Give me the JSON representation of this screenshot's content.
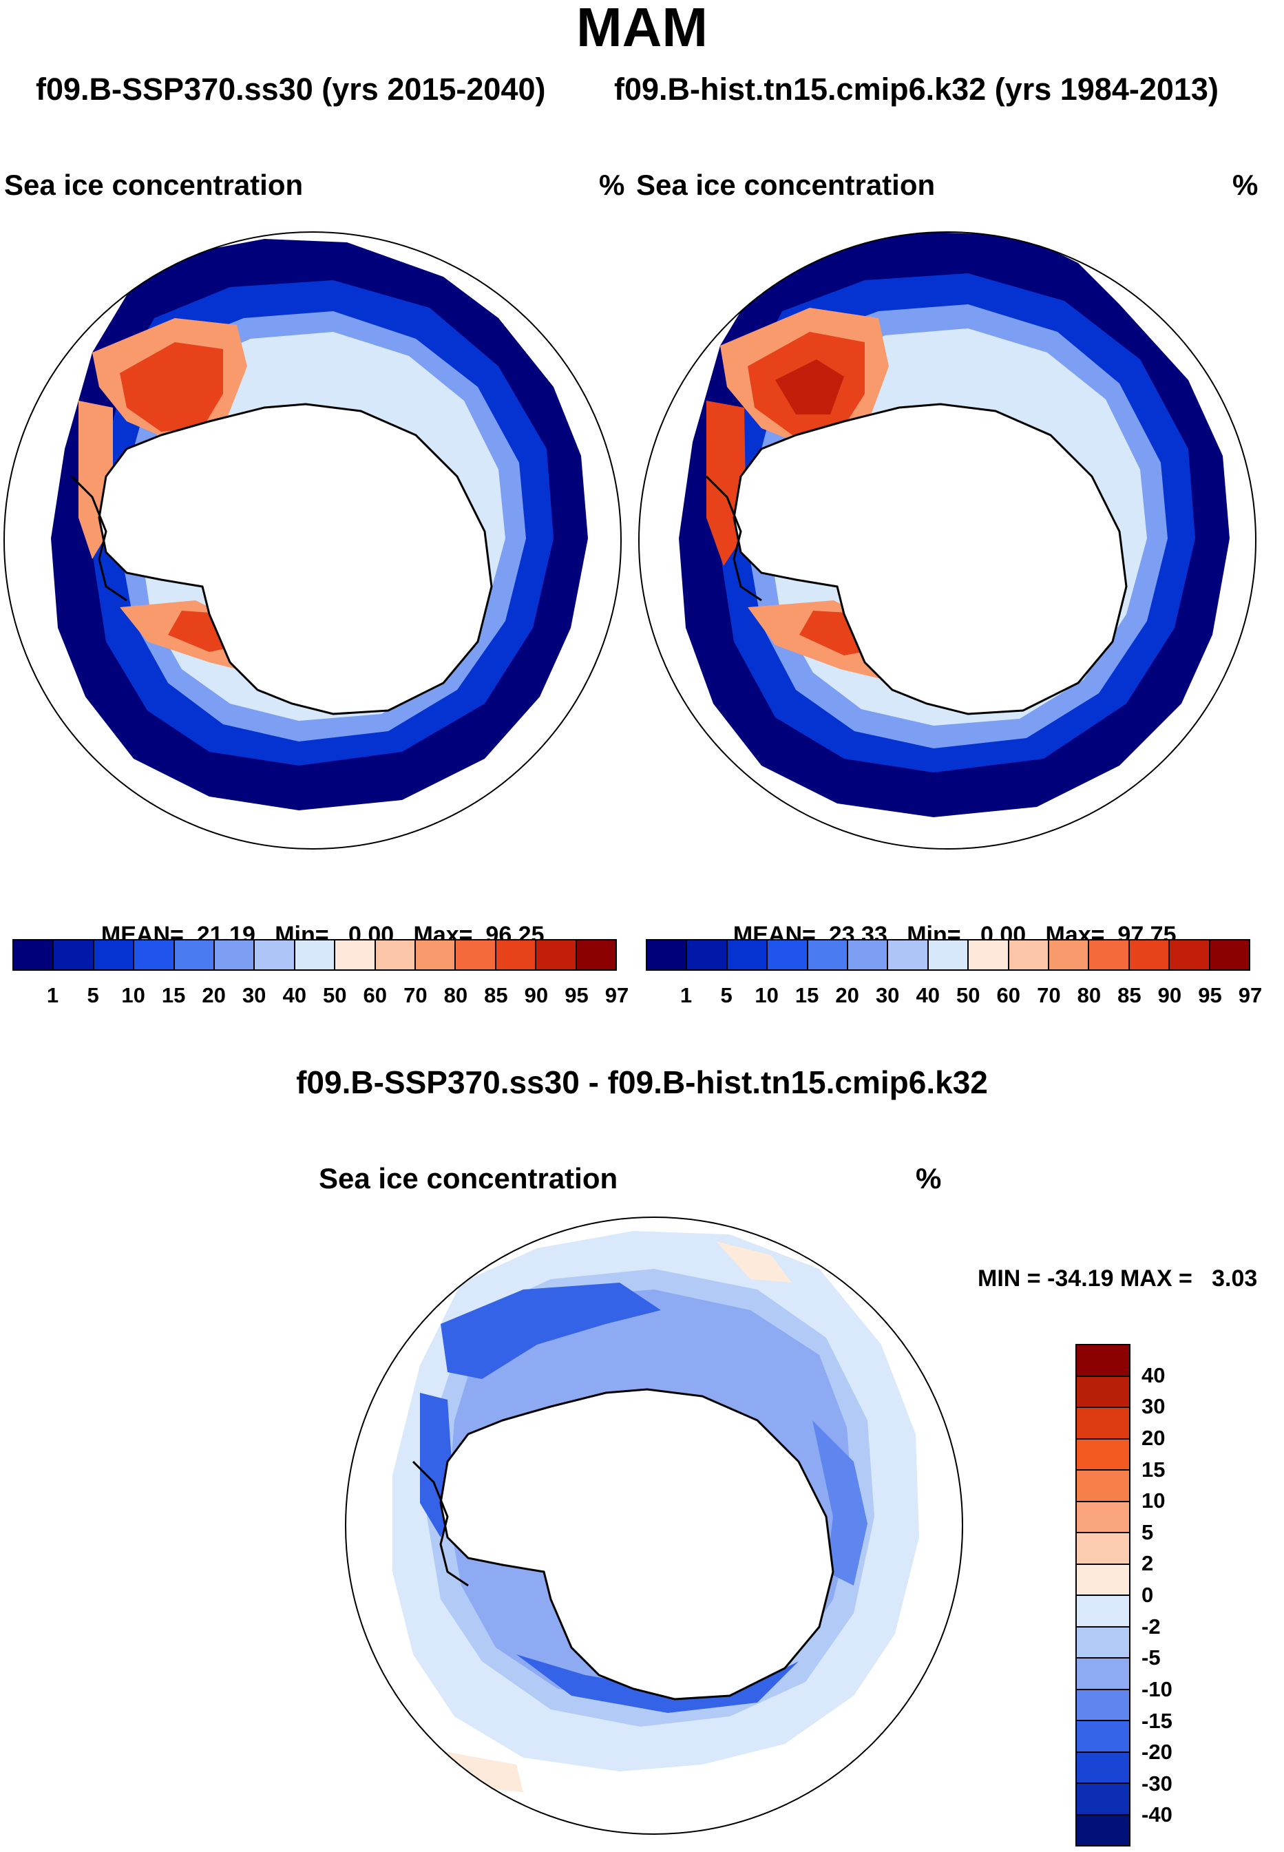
{
  "season": "MAM",
  "subtitle_left": "f09.B-SSP370.ss30 (yrs 2015-2040)",
  "subtitle_right": "f09.B-hist.tn15.cmip6.k32 (yrs 1984-2013)",
  "panels": [
    {
      "variable": "Sea ice concentration",
      "units": "%",
      "stats": {
        "mean_label": "MEAN=",
        "mean": "21.19",
        "min_label": "Min=",
        "min": "0.00",
        "max_label": "Max=",
        "max": "96.25"
      }
    },
    {
      "variable": "Sea ice concentration",
      "units": "%",
      "stats": {
        "mean_label": "MEAN=",
        "mean": "23.33",
        "min_label": "Min=",
        "min": "0.00",
        "max_label": "Max=",
        "max": "97.75"
      }
    }
  ],
  "colorbar_main": {
    "labels": [
      "1",
      "5",
      "10",
      "15",
      "20",
      "30",
      "40",
      "50",
      "60",
      "70",
      "80",
      "85",
      "90",
      "95",
      "97"
    ],
    "colors": [
      "#00007a",
      "#0019a8",
      "#0533d1",
      "#1f55ec",
      "#4a7bf0",
      "#7d9ff3",
      "#aec6f7",
      "#d8e8fb",
      "#fde8da",
      "#fbc6a8",
      "#f99a6d",
      "#f46a3a",
      "#e8421a",
      "#c21e0a",
      "#8b0000"
    ]
  },
  "difference": {
    "title": "f09.B-SSP370.ss30 - f09.B-hist.tn15.cmip6.k32",
    "variable": "Sea ice concentration",
    "units": "%",
    "min_label": "MIN =",
    "min": "-34.19",
    "max_label": "MAX =",
    "max": "3.03",
    "colorbar": {
      "labels": [
        "40",
        "30",
        "20",
        "15",
        "10",
        "5",
        "2",
        "0",
        "-2",
        "-5",
        "-10",
        "-15",
        "-20",
        "-30",
        "-40"
      ],
      "colors": [
        "#8b0000",
        "#b81e08",
        "#dd3b12",
        "#f25a22",
        "#f7804a",
        "#faa57e",
        "#fccdb0",
        "#fdeadb",
        "#d9e8fb",
        "#b2cbf6",
        "#8daaf2",
        "#5e86ee",
        "#3563e8",
        "#1a44d4",
        "#0a2db4",
        "#00127a"
      ]
    }
  }
}
